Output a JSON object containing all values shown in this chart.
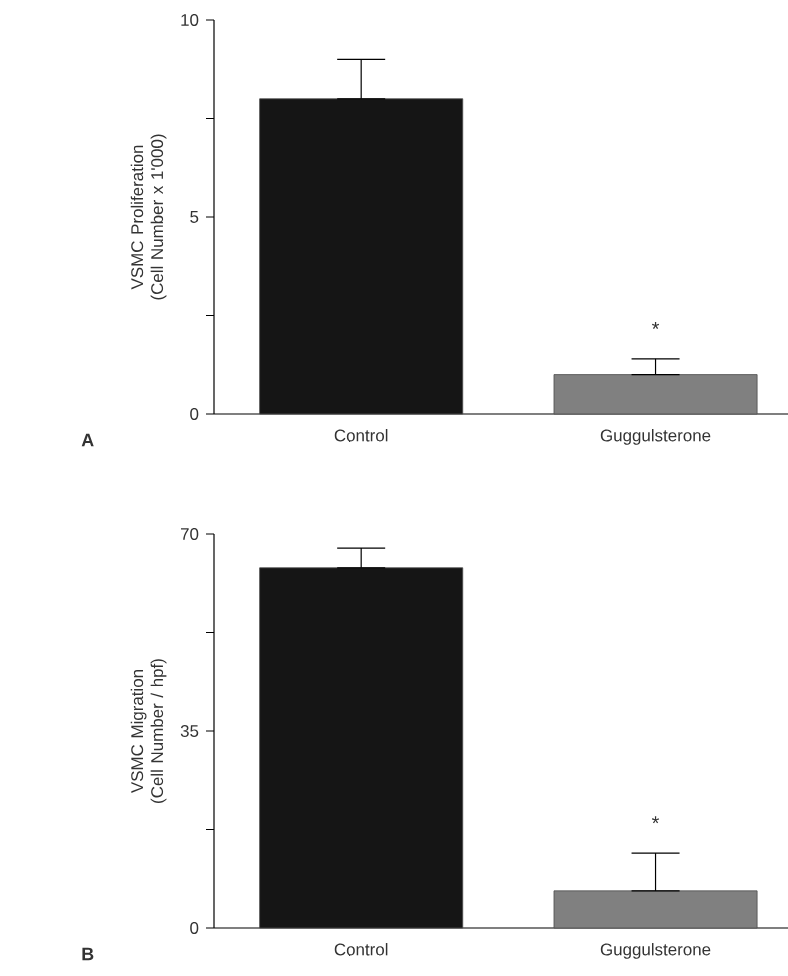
{
  "chart_data": [
    {
      "type": "bar",
      "ylabel": "VSMC Proliferation (Cell Number x 1'000)",
      "categories": [
        "Control",
        "Guggulsterone"
      ],
      "values": [
        8,
        1.0
      ],
      "colors": [
        "#151515",
        "#808080"
      ],
      "errors": [
        [
          8,
          9
        ],
        [
          1.0,
          1.4
        ]
      ],
      "ylim": [
        0,
        10
      ],
      "yticks": [
        0,
        {
          "value": 2.5,
          "label": null
        },
        5,
        {
          "value": 7.5,
          "label": null
        },
        10
      ],
      "annotations": [
        "*",
        "A"
      ]
    },
    {
      "type": "bar",
      "ylabel": "VSMC Migration (Cell Number / hpf)",
      "categories": [
        "Control",
        "Guggulsterone"
      ],
      "values": [
        64,
        6.6
      ],
      "colors": [
        "#151515",
        "#808080"
      ],
      "errors": [
        [
          64,
          67.5
        ],
        [
          6.6,
          13.3
        ]
      ],
      "ylim": [
        0,
        70
      ],
      "yticks": [
        0,
        {
          "value": 17.5,
          "label": null
        },
        35,
        {
          "value": 52.5,
          "label": null
        },
        70
      ],
      "annotations": [
        "*",
        "B"
      ]
    }
  ]
}
